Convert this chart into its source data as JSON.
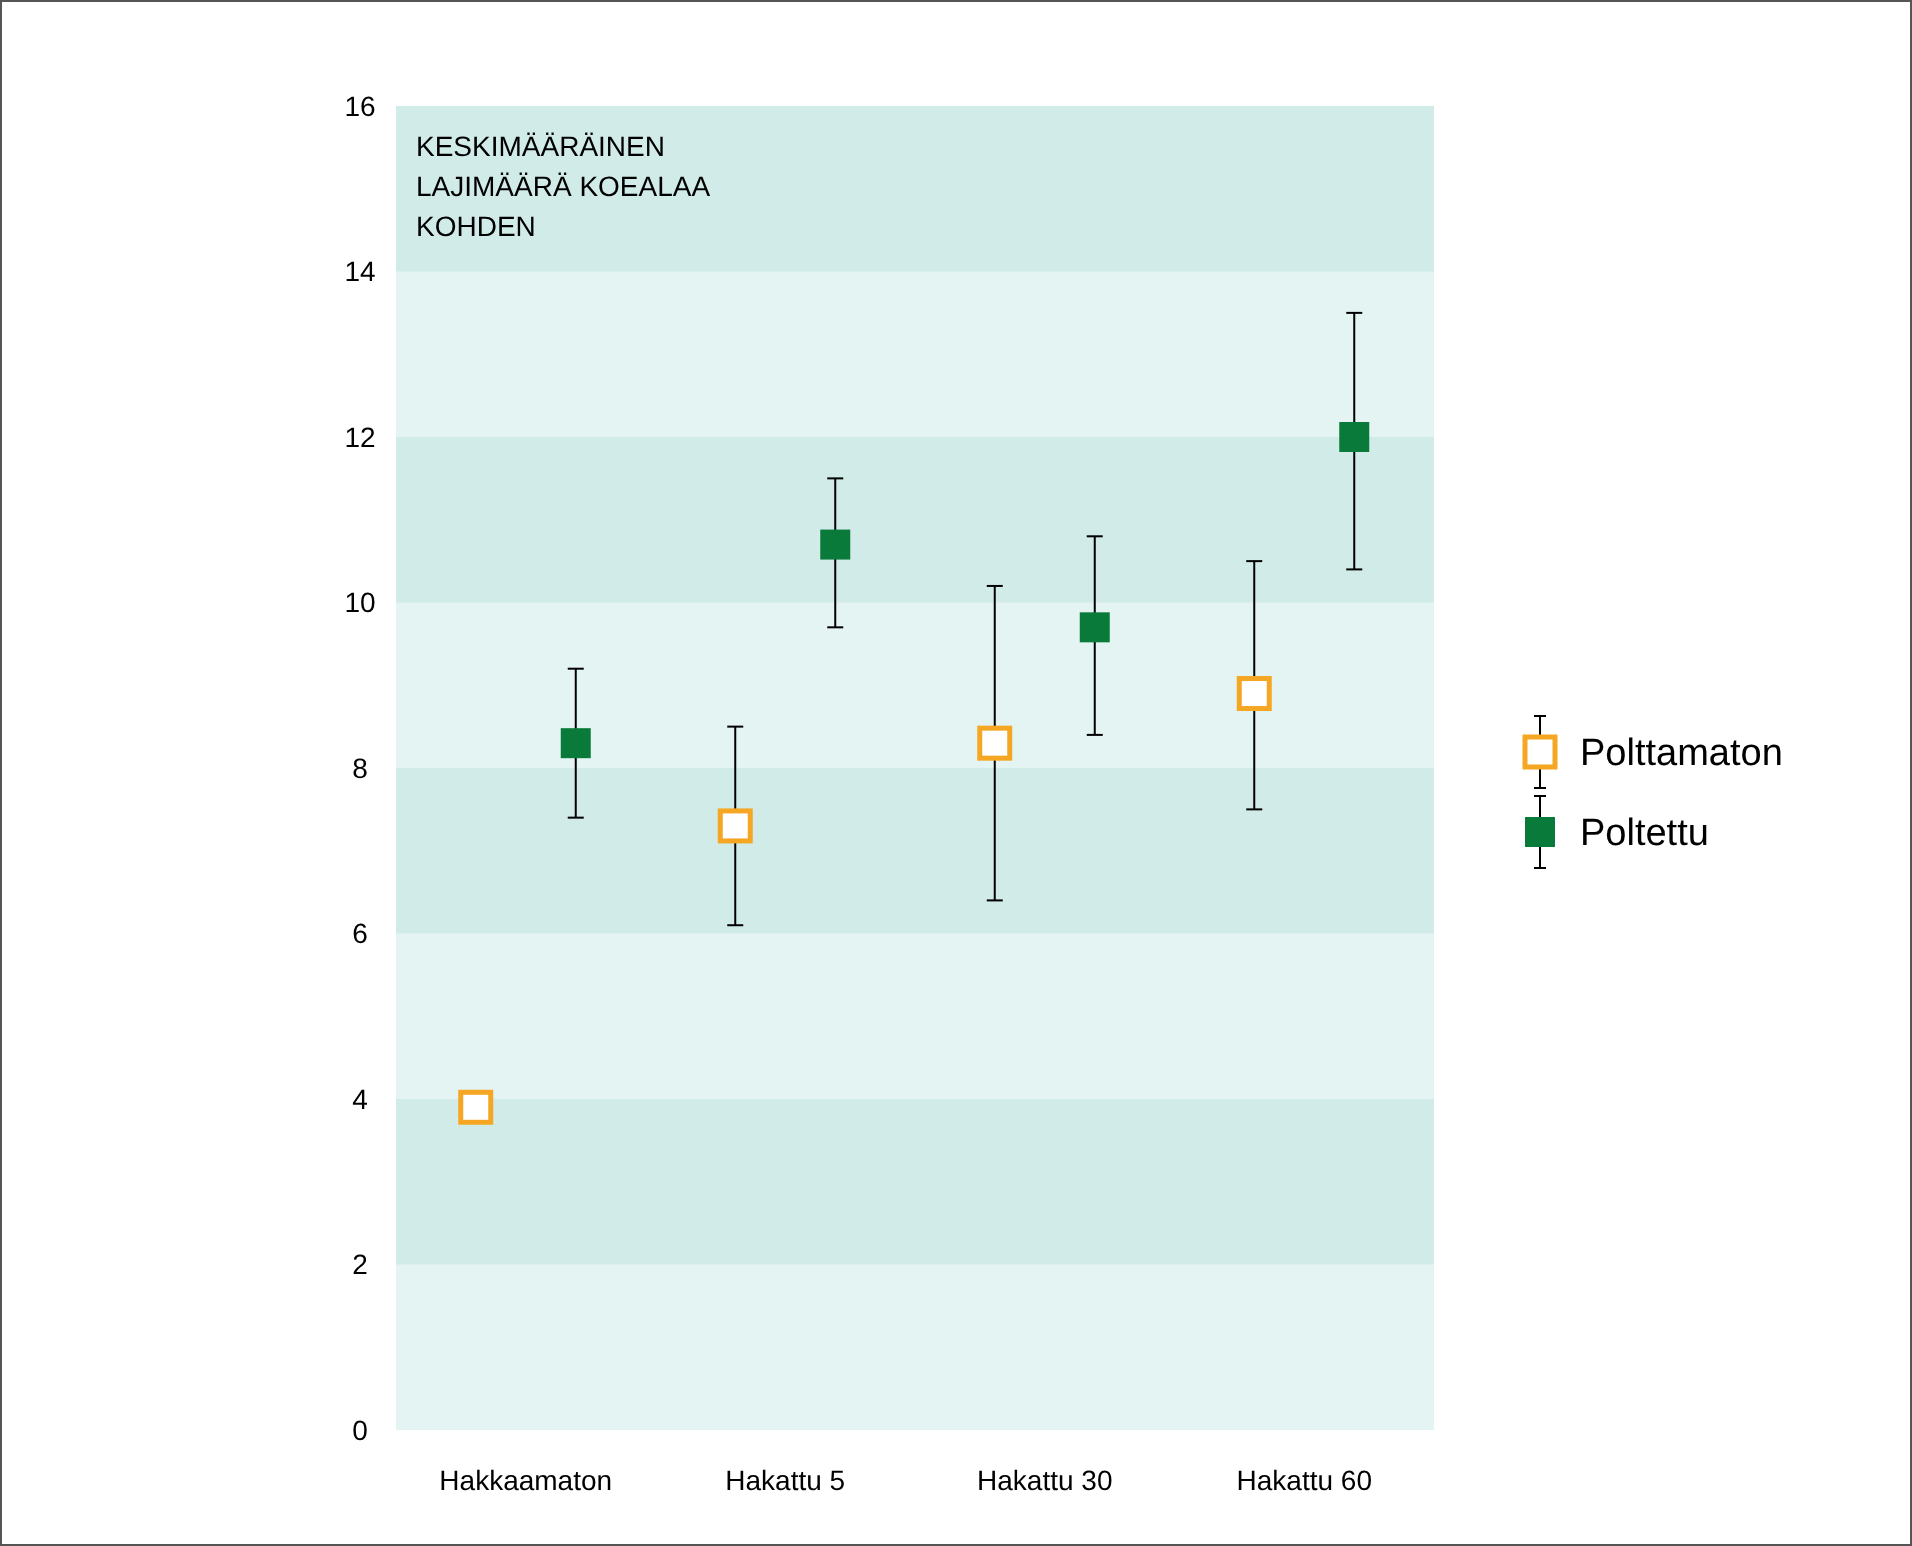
{
  "chart_data": {
    "type": "scatter",
    "title": "KESKIMÄÄRÄINEN LAJIMÄÄRÄ KOEALAA KOHDEN",
    "categories": [
      "Hakkaamaton",
      "Hakattu 5",
      "Hakattu 30",
      "Hakattu 60"
    ],
    "series": [
      {
        "name": "Polttamaton",
        "color": "#f5a623",
        "marker": "square",
        "values": [
          3.9,
          7.3,
          8.3,
          8.9
        ],
        "errors": [
          null,
          [
            6.1,
            8.5
          ],
          [
            6.4,
            10.2
          ],
          [
            7.5,
            10.5
          ]
        ]
      },
      {
        "name": "Poltettu",
        "color": "#0a7a3a",
        "marker": "square",
        "values": [
          8.3,
          10.7,
          9.7,
          12.0
        ],
        "errors": [
          [
            7.4,
            9.2
          ],
          [
            9.7,
            11.5
          ],
          [
            8.4,
            10.8
          ],
          [
            10.4,
            13.5
          ]
        ]
      }
    ],
    "ylim": [
      0,
      16
    ],
    "yticks": [
      0,
      2,
      4,
      6,
      8,
      10,
      12,
      14,
      16
    ],
    "bands": [
      {
        "axis": "y",
        "from": 2,
        "to": 4,
        "color": "#d1ebe9"
      },
      {
        "axis": "y",
        "from": 6,
        "to": 8,
        "color": "#d1ebe9"
      },
      {
        "axis": "y",
        "from": 10,
        "to": 12,
        "color": "#d1ebe9"
      },
      {
        "axis": "y",
        "from": 14,
        "to": 16,
        "color": "#d1ebe9"
      }
    ],
    "legend": "right"
  }
}
